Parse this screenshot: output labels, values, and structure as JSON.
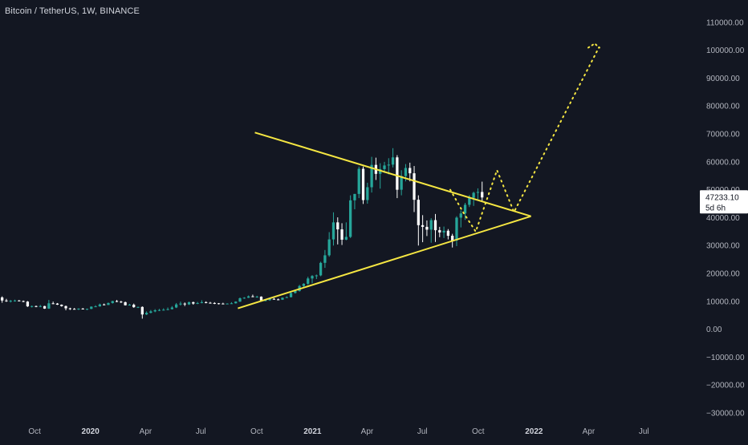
{
  "header": {
    "title": "Bitcoin / TetherUS, 1W, BINANCE"
  },
  "price_tag": {
    "price": "47233.10",
    "countdown": "5d 6h"
  },
  "colors": {
    "background": "#131722",
    "up": "#26a69a",
    "down": "#ffffff",
    "trendline": "#f5e642",
    "projection": "#f5e642",
    "axis_text": "#b2b5be"
  },
  "chart_data": {
    "type": "candlestick",
    "title": "Bitcoin / TetherUS, 1W, BINANCE",
    "y_ticks": [
      "110000.00",
      "100000.00",
      "90000.00",
      "80000.00",
      "70000.00",
      "60000.00",
      "50000.00",
      "40000.00",
      "30000.00",
      "20000.00",
      "10000.00",
      "0.00",
      "−10000.00",
      "−20000.00",
      "−30000.00"
    ],
    "y_tick_values": [
      110000,
      100000,
      90000,
      80000,
      70000,
      60000,
      50000,
      40000,
      30000,
      20000,
      10000,
      0,
      -10000,
      -20000,
      -30000
    ],
    "ylim": [
      -32000,
      118000
    ],
    "x_ticks": [
      {
        "label": "Oct",
        "date": "2019-10-01",
        "year": false
      },
      {
        "label": "2020",
        "date": "2020-01-01",
        "year": true
      },
      {
        "label": "Apr",
        "date": "2020-04-01",
        "year": false
      },
      {
        "label": "Jul",
        "date": "2020-07-01",
        "year": false
      },
      {
        "label": "Oct",
        "date": "2020-10-01",
        "year": false
      },
      {
        "label": "2021",
        "date": "2021-01-01",
        "year": true
      },
      {
        "label": "Apr",
        "date": "2021-04-01",
        "year": false
      },
      {
        "label": "Jul",
        "date": "2021-07-01",
        "year": false
      },
      {
        "label": "Oct",
        "date": "2021-10-01",
        "year": false
      },
      {
        "label": "2022",
        "date": "2022-01-01",
        "year": true
      },
      {
        "label": "Apr",
        "date": "2022-04-01",
        "year": false
      },
      {
        "label": "Jul",
        "date": "2022-07-01",
        "year": false
      }
    ],
    "xlim": [
      "2019-08-05",
      "2022-09-26"
    ],
    "candle_start": "2019-08-05",
    "candle_interval_days": 7,
    "candles": [
      [
        11400,
        11800,
        9500,
        10300
      ],
      [
        10300,
        10900,
        9800,
        10100
      ],
      [
        10100,
        10500,
        9600,
        10200
      ],
      [
        10200,
        10600,
        9900,
        10300
      ],
      [
        10300,
        10500,
        10000,
        10100
      ],
      [
        10100,
        10300,
        9700,
        9900
      ],
      [
        9900,
        10100,
        8000,
        8200
      ],
      [
        8200,
        8500,
        7800,
        8300
      ],
      [
        8300,
        8500,
        7900,
        8200
      ],
      [
        8200,
        8700,
        7900,
        8300
      ],
      [
        8300,
        8400,
        7300,
        7400
      ],
      [
        7400,
        10500,
        7300,
        9300
      ],
      [
        9300,
        9900,
        9000,
        9200
      ],
      [
        9200,
        9400,
        8700,
        8800
      ],
      [
        8800,
        8900,
        8100,
        8300
      ],
      [
        8300,
        8500,
        6800,
        7500
      ],
      [
        7500,
        7700,
        6900,
        7300
      ],
      [
        7300,
        7600,
        7100,
        7200
      ],
      [
        7200,
        7500,
        6900,
        7400
      ],
      [
        7400,
        7600,
        7100,
        7200
      ],
      [
        7200,
        7400,
        6900,
        7300
      ],
      [
        7300,
        8200,
        7200,
        8100
      ],
      [
        8100,
        8600,
        8000,
        8200
      ],
      [
        8200,
        9200,
        8100,
        8900
      ],
      [
        8900,
        9200,
        8600,
        8700
      ],
      [
        8700,
        9600,
        8700,
        9400
      ],
      [
        9400,
        10200,
        9200,
        10100
      ],
      [
        10100,
        10500,
        9700,
        9900
      ],
      [
        9900,
        10200,
        9400,
        9700
      ],
      [
        9700,
        9900,
        8500,
        8600
      ],
      [
        8600,
        9100,
        8500,
        8800
      ],
      [
        8800,
        9200,
        7700,
        7900
      ],
      [
        7900,
        8100,
        7600,
        8000
      ],
      [
        8000,
        8200,
        3800,
        5300
      ],
      [
        5300,
        6400,
        5100,
        5900
      ],
      [
        5900,
        6900,
        5700,
        6400
      ],
      [
        6400,
        7200,
        6100,
        6800
      ],
      [
        6800,
        7300,
        6500,
        6900
      ],
      [
        6900,
        7500,
        6700,
        7000
      ],
      [
        7000,
        7800,
        6800,
        7200
      ],
      [
        7200,
        8300,
        7100,
        7800
      ],
      [
        7800,
        9400,
        7600,
        8900
      ],
      [
        8900,
        9900,
        8500,
        9200
      ],
      [
        9200,
        9600,
        8300,
        8900
      ],
      [
        8900,
        9900,
        8700,
        9700
      ],
      [
        9700,
        9900,
        8800,
        9200
      ],
      [
        9200,
        9800,
        9000,
        9400
      ],
      [
        9400,
        10400,
        9300,
        9700
      ],
      [
        9700,
        10000,
        9300,
        9500
      ],
      [
        9500,
        9800,
        9200,
        9400
      ],
      [
        9400,
        9700,
        9000,
        9300
      ],
      [
        9300,
        9400,
        8900,
        9200
      ],
      [
        9200,
        9500,
        9000,
        9100
      ],
      [
        9100,
        9300,
        9000,
        9200
      ],
      [
        9200,
        9700,
        9100,
        9300
      ],
      [
        9300,
        10000,
        9200,
        9900
      ],
      [
        9900,
        11400,
        9800,
        11100
      ],
      [
        11100,
        11500,
        10900,
        11300
      ],
      [
        11300,
        12100,
        11200,
        11800
      ],
      [
        11800,
        12400,
        11500,
        11600
      ],
      [
        11600,
        12000,
        11300,
        11700
      ],
      [
        11700,
        11800,
        10000,
        10300
      ],
      [
        10300,
        10800,
        10000,
        10400
      ],
      [
        10400,
        11100,
        10200,
        10900
      ],
      [
        10900,
        11200,
        10600,
        10700
      ],
      [
        10700,
        11000,
        10400,
        10600
      ],
      [
        10600,
        11400,
        10500,
        11300
      ],
      [
        11300,
        11800,
        11200,
        11500
      ],
      [
        11500,
        13200,
        11400,
        13000
      ],
      [
        13000,
        13800,
        12800,
        13700
      ],
      [
        13700,
        15900,
        13500,
        15500
      ],
      [
        15500,
        16500,
        15100,
        16300
      ],
      [
        16300,
        18800,
        15900,
        18200
      ],
      [
        18200,
        19400,
        16500,
        19100
      ],
      [
        19100,
        19600,
        18000,
        19300
      ],
      [
        19300,
        24200,
        19000,
        23800
      ],
      [
        23800,
        28400,
        22000,
        26500
      ],
      [
        26500,
        34800,
        26000,
        32200
      ],
      [
        32200,
        41900,
        30000,
        38300
      ],
      [
        38300,
        40100,
        30400,
        35800
      ],
      [
        35800,
        38000,
        30200,
        32100
      ],
      [
        32100,
        38300,
        31900,
        33100
      ],
      [
        33100,
        48000,
        32700,
        46200
      ],
      [
        46200,
        48500,
        43000,
        48500
      ],
      [
        48500,
        58300,
        47000,
        57500
      ],
      [
        57500,
        58300,
        44900,
        46300
      ],
      [
        46300,
        52500,
        45000,
        50900
      ],
      [
        50900,
        61800,
        49000,
        58900
      ],
      [
        58900,
        61500,
        53500,
        55700
      ],
      [
        55700,
        59500,
        50400,
        57400
      ],
      [
        57400,
        60000,
        56000,
        58700
      ],
      [
        58700,
        61300,
        55500,
        59000
      ],
      [
        59000,
        64900,
        58000,
        61600
      ],
      [
        61600,
        62400,
        47000,
        50000
      ],
      [
        50000,
        57000,
        48000,
        54900
      ],
      [
        54900,
        59200,
        53000,
        57800
      ],
      [
        57800,
        59700,
        53000,
        55900
      ],
      [
        55900,
        58500,
        42000,
        46400
      ],
      [
        46400,
        48000,
        30000,
        37300
      ],
      [
        37300,
        40900,
        31200,
        36700
      ],
      [
        36700,
        39000,
        33400,
        35700
      ],
      [
        35700,
        39800,
        31000,
        39100
      ],
      [
        39100,
        41300,
        31300,
        35500
      ],
      [
        35500,
        36700,
        33000,
        34700
      ],
      [
        34700,
        36800,
        32700,
        35300
      ],
      [
        35300,
        35900,
        32200,
        33500
      ],
      [
        33500,
        34200,
        29300,
        31800
      ],
      [
        31800,
        40500,
        29800,
        40000
      ],
      [
        40000,
        42600,
        36500,
        41500
      ],
      [
        41500,
        45300,
        39200,
        44600
      ],
      [
        44600,
        48100,
        43800,
        47100
      ],
      [
        47100,
        49300,
        44200,
        48900
      ],
      [
        48900,
        50500,
        46600,
        49200
      ],
      [
        49200,
        52900,
        46000,
        47233
      ]
    ],
    "trendlines": [
      {
        "name": "upper",
        "points": [
          [
            "2020-09-28",
            70500
          ],
          [
            "2021-12-27",
            40500
          ]
        ]
      },
      {
        "name": "lower",
        "points": [
          [
            "2020-08-31",
            7500
          ],
          [
            "2021-12-27",
            40500
          ]
        ]
      }
    ],
    "projection": [
      [
        "2021-08-16",
        50000
      ],
      [
        "2021-09-06",
        42000
      ],
      [
        "2021-09-27",
        35000
      ],
      [
        "2021-11-01",
        57000
      ],
      [
        "2021-11-29",
        42000
      ],
      [
        "2022-04-18",
        101000
      ]
    ],
    "projection_marker": [
      "2022-04-11",
      101500
    ]
  }
}
